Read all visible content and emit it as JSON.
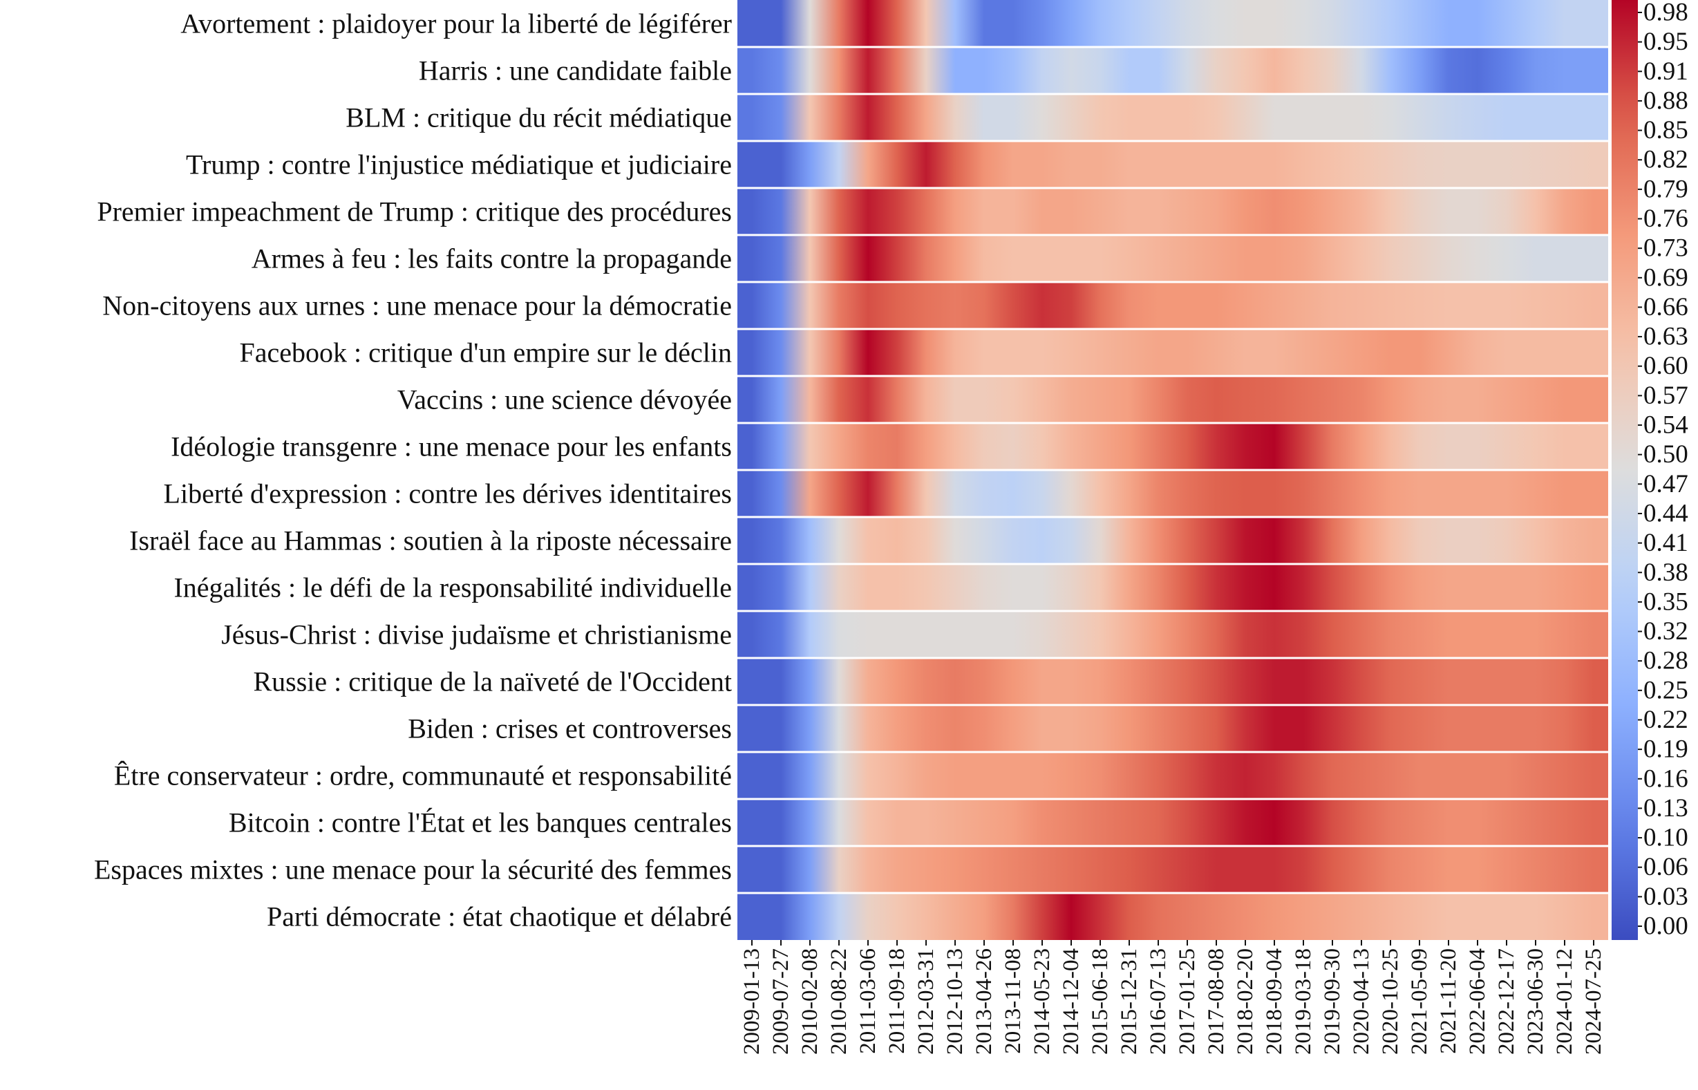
{
  "chart_data": {
    "type": "heatmap",
    "colormap": "coolwarm",
    "vmin": 0.0,
    "vmax": 0.98,
    "rows": [
      "Avortement : plaidoyer pour la liberté de légiférer",
      "Harris : une candidate faible",
      "BLM : critique du récit médiatique",
      "Trump : contre l'injustice médiatique et judiciaire",
      "Premier impeachment de Trump : critique des procédures",
      "Armes à feu : les faits contre la propagande",
      "Non-citoyens aux urnes : une menace pour la démocratie",
      "Facebook : critique d'un empire sur le déclin",
      "Vaccins : une science dévoyée",
      "Idéologie transgenre : une menace pour les enfants",
      "Liberté d'expression : contre les dérives identitaires",
      "Israël face au Hammas : soutien à la riposte nécessaire",
      "Inégalités : le défi de la responsabilité individuelle",
      "Jésus-Christ : divise judaïsme et christianisme",
      "Russie : critique de la naïveté de l'Occident",
      "Biden : crises et controverses",
      "Être conservateur : ordre, communauté et responsabilité",
      "Bitcoin : contre l'État et les banques centrales",
      "Espaces mixtes : une menace pour la sécurité des femmes",
      "Parti démocrate : état chaotique et délabré"
    ],
    "x_tick_labels": [
      "2009-01-13",
      "2009-07-27",
      "2010-02-08",
      "2010-08-22",
      "2011-03-06",
      "2011-09-18",
      "2012-03-31",
      "2012-10-13",
      "2013-04-26",
      "2013-11-08",
      "2014-05-23",
      "2014-12-04",
      "2015-06-18",
      "2015-12-31",
      "2016-07-13",
      "2017-01-25",
      "2017-08-08",
      "2018-02-20",
      "2018-09-04",
      "2019-03-18",
      "2019-09-30",
      "2020-04-13",
      "2020-10-25",
      "2021-05-09",
      "2021-11-20",
      "2022-06-04",
      "2022-12-17",
      "2023-06-30",
      "2024-01-12",
      "2024-07-25"
    ],
    "colorbar_ticks": [
      "0.98",
      "0.95",
      "0.91",
      "0.88",
      "0.85",
      "0.82",
      "0.79",
      "0.76",
      "0.73",
      "0.69",
      "0.66",
      "0.63",
      "0.60",
      "0.57",
      "0.54",
      "0.50",
      "0.47",
      "0.44",
      "0.41",
      "0.38",
      "0.35",
      "0.32",
      "0.28",
      "0.25",
      "0.22",
      "0.19",
      "0.16",
      "0.13",
      "0.10",
      "0.06",
      "0.03",
      "0.00"
    ],
    "values": [
      [
        0.05,
        0.05,
        0.5,
        0.8,
        0.98,
        0.85,
        0.6,
        0.3,
        0.1,
        0.1,
        0.15,
        0.22,
        0.3,
        0.35,
        0.4,
        0.45,
        0.48,
        0.5,
        0.5,
        0.48,
        0.45,
        0.4,
        0.35,
        0.3,
        0.25,
        0.25,
        0.3,
        0.35,
        0.4,
        0.4
      ],
      [
        0.1,
        0.15,
        0.5,
        0.75,
        0.95,
        0.8,
        0.55,
        0.25,
        0.25,
        0.3,
        0.4,
        0.45,
        0.42,
        0.35,
        0.35,
        0.45,
        0.55,
        0.6,
        0.65,
        0.6,
        0.55,
        0.45,
        0.3,
        0.2,
        0.1,
        0.08,
        0.12,
        0.18,
        0.2,
        0.2
      ],
      [
        0.1,
        0.15,
        0.6,
        0.8,
        0.95,
        0.85,
        0.7,
        0.55,
        0.45,
        0.45,
        0.5,
        0.55,
        0.6,
        0.62,
        0.62,
        0.62,
        0.6,
        0.55,
        0.5,
        0.5,
        0.5,
        0.5,
        0.48,
        0.45,
        0.42,
        0.4,
        0.38,
        0.38,
        0.38,
        0.38
      ],
      [
        0.05,
        0.05,
        0.2,
        0.4,
        0.7,
        0.85,
        0.95,
        0.85,
        0.75,
        0.7,
        0.7,
        0.68,
        0.68,
        0.66,
        0.66,
        0.66,
        0.66,
        0.66,
        0.66,
        0.64,
        0.62,
        0.6,
        0.58,
        0.56,
        0.55,
        0.55,
        0.55,
        0.56,
        0.57,
        0.58
      ],
      [
        0.05,
        0.1,
        0.6,
        0.85,
        0.95,
        0.9,
        0.82,
        0.72,
        0.66,
        0.66,
        0.7,
        0.7,
        0.68,
        0.66,
        0.66,
        0.68,
        0.7,
        0.74,
        0.76,
        0.74,
        0.7,
        0.66,
        0.6,
        0.55,
        0.52,
        0.52,
        0.55,
        0.62,
        0.7,
        0.74
      ],
      [
        0.05,
        0.1,
        0.6,
        0.85,
        0.98,
        0.9,
        0.8,
        0.72,
        0.64,
        0.62,
        0.62,
        0.62,
        0.62,
        0.64,
        0.66,
        0.68,
        0.7,
        0.72,
        0.72,
        0.7,
        0.66,
        0.62,
        0.58,
        0.55,
        0.52,
        0.5,
        0.48,
        0.46,
        0.46,
        0.46
      ],
      [
        0.05,
        0.15,
        0.6,
        0.8,
        0.88,
        0.85,
        0.82,
        0.8,
        0.82,
        0.88,
        0.92,
        0.9,
        0.82,
        0.76,
        0.74,
        0.74,
        0.74,
        0.72,
        0.7,
        0.68,
        0.66,
        0.65,
        0.64,
        0.63,
        0.62,
        0.62,
        0.62,
        0.63,
        0.64,
        0.65
      ],
      [
        0.05,
        0.15,
        0.6,
        0.8,
        0.98,
        0.9,
        0.76,
        0.66,
        0.62,
        0.62,
        0.62,
        0.64,
        0.66,
        0.68,
        0.7,
        0.7,
        0.68,
        0.66,
        0.66,
        0.68,
        0.7,
        0.72,
        0.74,
        0.74,
        0.7,
        0.66,
        0.64,
        0.64,
        0.64,
        0.64
      ],
      [
        0.05,
        0.2,
        0.65,
        0.85,
        0.92,
        0.8,
        0.66,
        0.58,
        0.58,
        0.6,
        0.64,
        0.68,
        0.7,
        0.72,
        0.78,
        0.84,
        0.86,
        0.85,
        0.84,
        0.82,
        0.8,
        0.78,
        0.74,
        0.7,
        0.68,
        0.68,
        0.7,
        0.72,
        0.74,
        0.74
      ],
      [
        0.05,
        0.2,
        0.6,
        0.7,
        0.78,
        0.8,
        0.72,
        0.64,
        0.58,
        0.56,
        0.6,
        0.66,
        0.7,
        0.74,
        0.8,
        0.86,
        0.92,
        0.96,
        0.98,
        0.9,
        0.8,
        0.72,
        0.64,
        0.58,
        0.56,
        0.56,
        0.58,
        0.6,
        0.62,
        0.62
      ],
      [
        0.05,
        0.15,
        0.7,
        0.85,
        0.95,
        0.8,
        0.6,
        0.45,
        0.4,
        0.38,
        0.42,
        0.52,
        0.62,
        0.7,
        0.78,
        0.82,
        0.85,
        0.86,
        0.86,
        0.84,
        0.8,
        0.76,
        0.72,
        0.7,
        0.7,
        0.7,
        0.7,
        0.72,
        0.74,
        0.74
      ],
      [
        0.05,
        0.1,
        0.3,
        0.5,
        0.62,
        0.64,
        0.6,
        0.5,
        0.45,
        0.4,
        0.38,
        0.42,
        0.52,
        0.66,
        0.76,
        0.84,
        0.9,
        0.96,
        0.98,
        0.92,
        0.82,
        0.72,
        0.64,
        0.58,
        0.56,
        0.56,
        0.58,
        0.62,
        0.66,
        0.68
      ],
      [
        0.05,
        0.1,
        0.35,
        0.55,
        0.62,
        0.62,
        0.6,
        0.56,
        0.52,
        0.5,
        0.5,
        0.54,
        0.6,
        0.7,
        0.78,
        0.86,
        0.92,
        0.96,
        0.98,
        0.94,
        0.88,
        0.82,
        0.76,
        0.72,
        0.7,
        0.7,
        0.7,
        0.7,
        0.72,
        0.74
      ],
      [
        0.05,
        0.1,
        0.35,
        0.48,
        0.5,
        0.5,
        0.5,
        0.5,
        0.5,
        0.5,
        0.52,
        0.56,
        0.6,
        0.66,
        0.72,
        0.78,
        0.84,
        0.9,
        0.92,
        0.9,
        0.86,
        0.82,
        0.78,
        0.76,
        0.74,
        0.74,
        0.74,
        0.74,
        0.76,
        0.78
      ],
      [
        0.05,
        0.05,
        0.2,
        0.5,
        0.68,
        0.74,
        0.78,
        0.8,
        0.78,
        0.74,
        0.7,
        0.7,
        0.72,
        0.76,
        0.8,
        0.84,
        0.88,
        0.92,
        0.95,
        0.95,
        0.92,
        0.88,
        0.84,
        0.82,
        0.8,
        0.8,
        0.8,
        0.8,
        0.82,
        0.86
      ],
      [
        0.05,
        0.05,
        0.2,
        0.48,
        0.66,
        0.72,
        0.76,
        0.78,
        0.76,
        0.72,
        0.68,
        0.68,
        0.7,
        0.74,
        0.78,
        0.82,
        0.86,
        0.92,
        0.96,
        0.96,
        0.92,
        0.88,
        0.84,
        0.82,
        0.8,
        0.8,
        0.8,
        0.8,
        0.82,
        0.86
      ],
      [
        0.05,
        0.05,
        0.2,
        0.48,
        0.62,
        0.66,
        0.7,
        0.72,
        0.72,
        0.72,
        0.72,
        0.74,
        0.76,
        0.8,
        0.84,
        0.88,
        0.92,
        0.94,
        0.92,
        0.88,
        0.84,
        0.82,
        0.8,
        0.78,
        0.78,
        0.78,
        0.78,
        0.8,
        0.82,
        0.84
      ],
      [
        0.05,
        0.05,
        0.2,
        0.48,
        0.62,
        0.66,
        0.66,
        0.68,
        0.7,
        0.72,
        0.76,
        0.78,
        0.8,
        0.82,
        0.84,
        0.88,
        0.92,
        0.96,
        0.98,
        0.94,
        0.88,
        0.84,
        0.8,
        0.78,
        0.76,
        0.76,
        0.78,
        0.8,
        0.82,
        0.84
      ],
      [
        0.05,
        0.05,
        0.2,
        0.55,
        0.66,
        0.7,
        0.72,
        0.74,
        0.76,
        0.78,
        0.8,
        0.82,
        0.84,
        0.86,
        0.88,
        0.9,
        0.92,
        0.92,
        0.92,
        0.9,
        0.86,
        0.82,
        0.78,
        0.76,
        0.74,
        0.74,
        0.76,
        0.78,
        0.8,
        0.82
      ],
      [
        0.05,
        0.05,
        0.2,
        0.4,
        0.55,
        0.6,
        0.64,
        0.68,
        0.72,
        0.8,
        0.9,
        0.98,
        0.92,
        0.86,
        0.82,
        0.8,
        0.78,
        0.76,
        0.74,
        0.72,
        0.7,
        0.68,
        0.66,
        0.64,
        0.62,
        0.62,
        0.62,
        0.62,
        0.64,
        0.66
      ]
    ]
  }
}
